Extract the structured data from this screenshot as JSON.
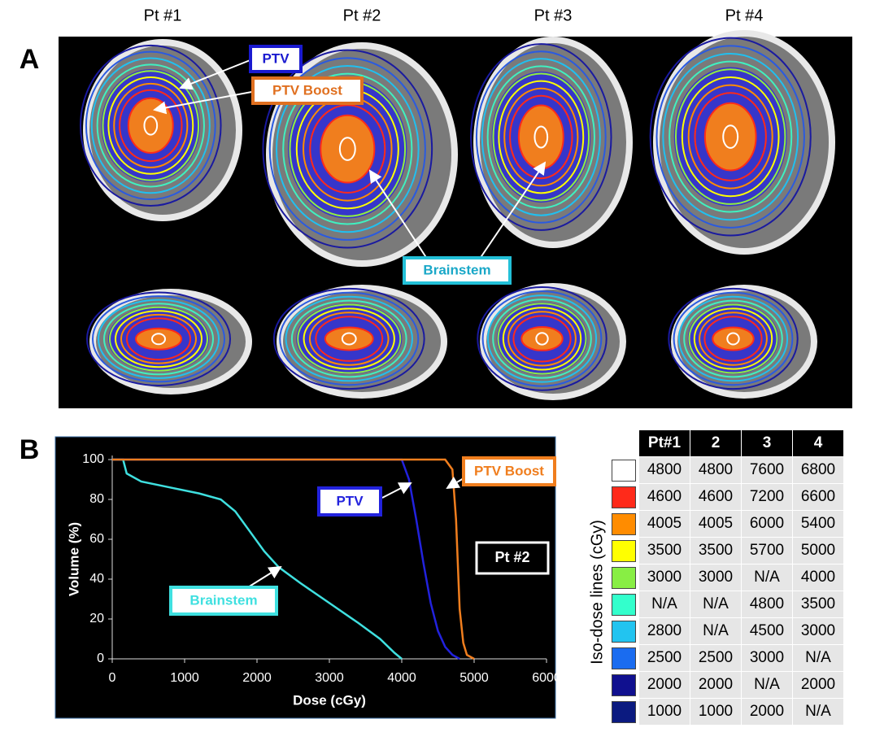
{
  "panel_a": {
    "label": "A",
    "columns": [
      "Pt #1",
      "Pt #2",
      "Pt #3",
      "Pt #4"
    ],
    "annotations": [
      "PTV",
      "PTV Boost",
      "Brainstem"
    ]
  },
  "panel_b": {
    "label": "B"
  },
  "chart_data": {
    "type": "line",
    "x_label": "Dose (cGy)",
    "y_label": "Volume (%)",
    "annotation": "Pt #2",
    "xlim": [
      0,
      6000
    ],
    "ylim": [
      0,
      100
    ],
    "xticks": [
      0,
      1000,
      2000,
      3000,
      4000,
      5000,
      6000
    ],
    "yticks": [
      0,
      20,
      40,
      60,
      80,
      100
    ],
    "series": [
      {
        "name": "Brainstem",
        "color": "#3fe0e0",
        "x": [
          0,
          150,
          200,
          400,
          800,
          1200,
          1500,
          1700,
          1900,
          2100,
          2300,
          2600,
          3000,
          3400,
          3700,
          3900,
          4000
        ],
        "values": [
          100,
          100,
          93,
          89,
          86,
          83,
          80,
          74,
          64,
          54,
          46,
          38,
          28,
          18,
          10,
          3,
          0
        ]
      },
      {
        "name": "PTV",
        "color": "#2222dd",
        "x": [
          0,
          4000,
          4100,
          4200,
          4300,
          4400,
          4500,
          4600,
          4700,
          4800
        ],
        "values": [
          100,
          100,
          90,
          70,
          48,
          28,
          14,
          6,
          2,
          0
        ]
      },
      {
        "name": "PTV Boost",
        "color": "#f07e1e",
        "x": [
          0,
          4600,
          4700,
          4750,
          4800,
          4850,
          4900,
          5000
        ],
        "values": [
          100,
          100,
          95,
          70,
          25,
          8,
          2,
          0
        ]
      }
    ]
  },
  "table": {
    "title": "Iso-dose lines (cGy)",
    "header": [
      "Pt#1",
      "2",
      "3",
      "4"
    ],
    "colors": [
      "#ffffff",
      "#ff2a1a",
      "#ff8c00",
      "#ffff00",
      "#88ee44",
      "#33ffcc",
      "#22c4f0",
      "#1a6cf0",
      "#10108f",
      "#0b1a80"
    ],
    "rows": [
      [
        4800,
        4800,
        7600,
        6800
      ],
      [
        4600,
        4600,
        7200,
        6600
      ],
      [
        4005,
        4005,
        6000,
        5400
      ],
      [
        3500,
        3500,
        5700,
        5000
      ],
      [
        3000,
        3000,
        "N/A",
        4000
      ],
      [
        "N/A",
        "N/A",
        4800,
        3500
      ],
      [
        2800,
        "N/A",
        4500,
        3000
      ],
      [
        2500,
        2500,
        3000,
        "N/A"
      ],
      [
        2000,
        2000,
        "N/A",
        2000
      ],
      [
        1000,
        1000,
        2000,
        "N/A"
      ]
    ]
  }
}
